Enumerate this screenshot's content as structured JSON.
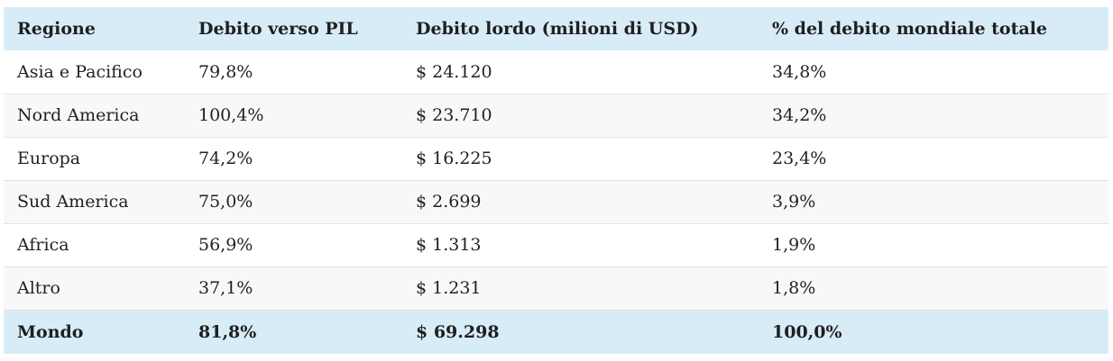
{
  "table": {
    "headers": [
      "Regione",
      "Debito verso PIL",
      "Debito lordo (milioni di USD)",
      "% del debito mondiale totale"
    ],
    "rows": [
      [
        "Asia e Pacifico",
        "79,8%",
        "$ 24.120",
        "34,8%"
      ],
      [
        "Nord America",
        "100,4%",
        "$ 23.710",
        "34,2%"
      ],
      [
        "Europa",
        "74,2%",
        "$ 16.225",
        "23,4%"
      ],
      [
        "Sud America",
        "75,0%",
        "$ 2.699",
        "3,9%"
      ],
      [
        "Africa",
        "56,9%",
        "$ 1.313",
        "1,9%"
      ],
      [
        "Altro",
        "37,1%",
        "$ 1.231",
        "1,8%"
      ]
    ],
    "total": [
      "Mondo",
      "81,8%",
      "$ 69.298",
      "100,0%"
    ]
  },
  "colors": {
    "header_bg": "#d8ecf7",
    "stripe_bg": "#f8f8f8",
    "border": "#e4e4e4"
  }
}
